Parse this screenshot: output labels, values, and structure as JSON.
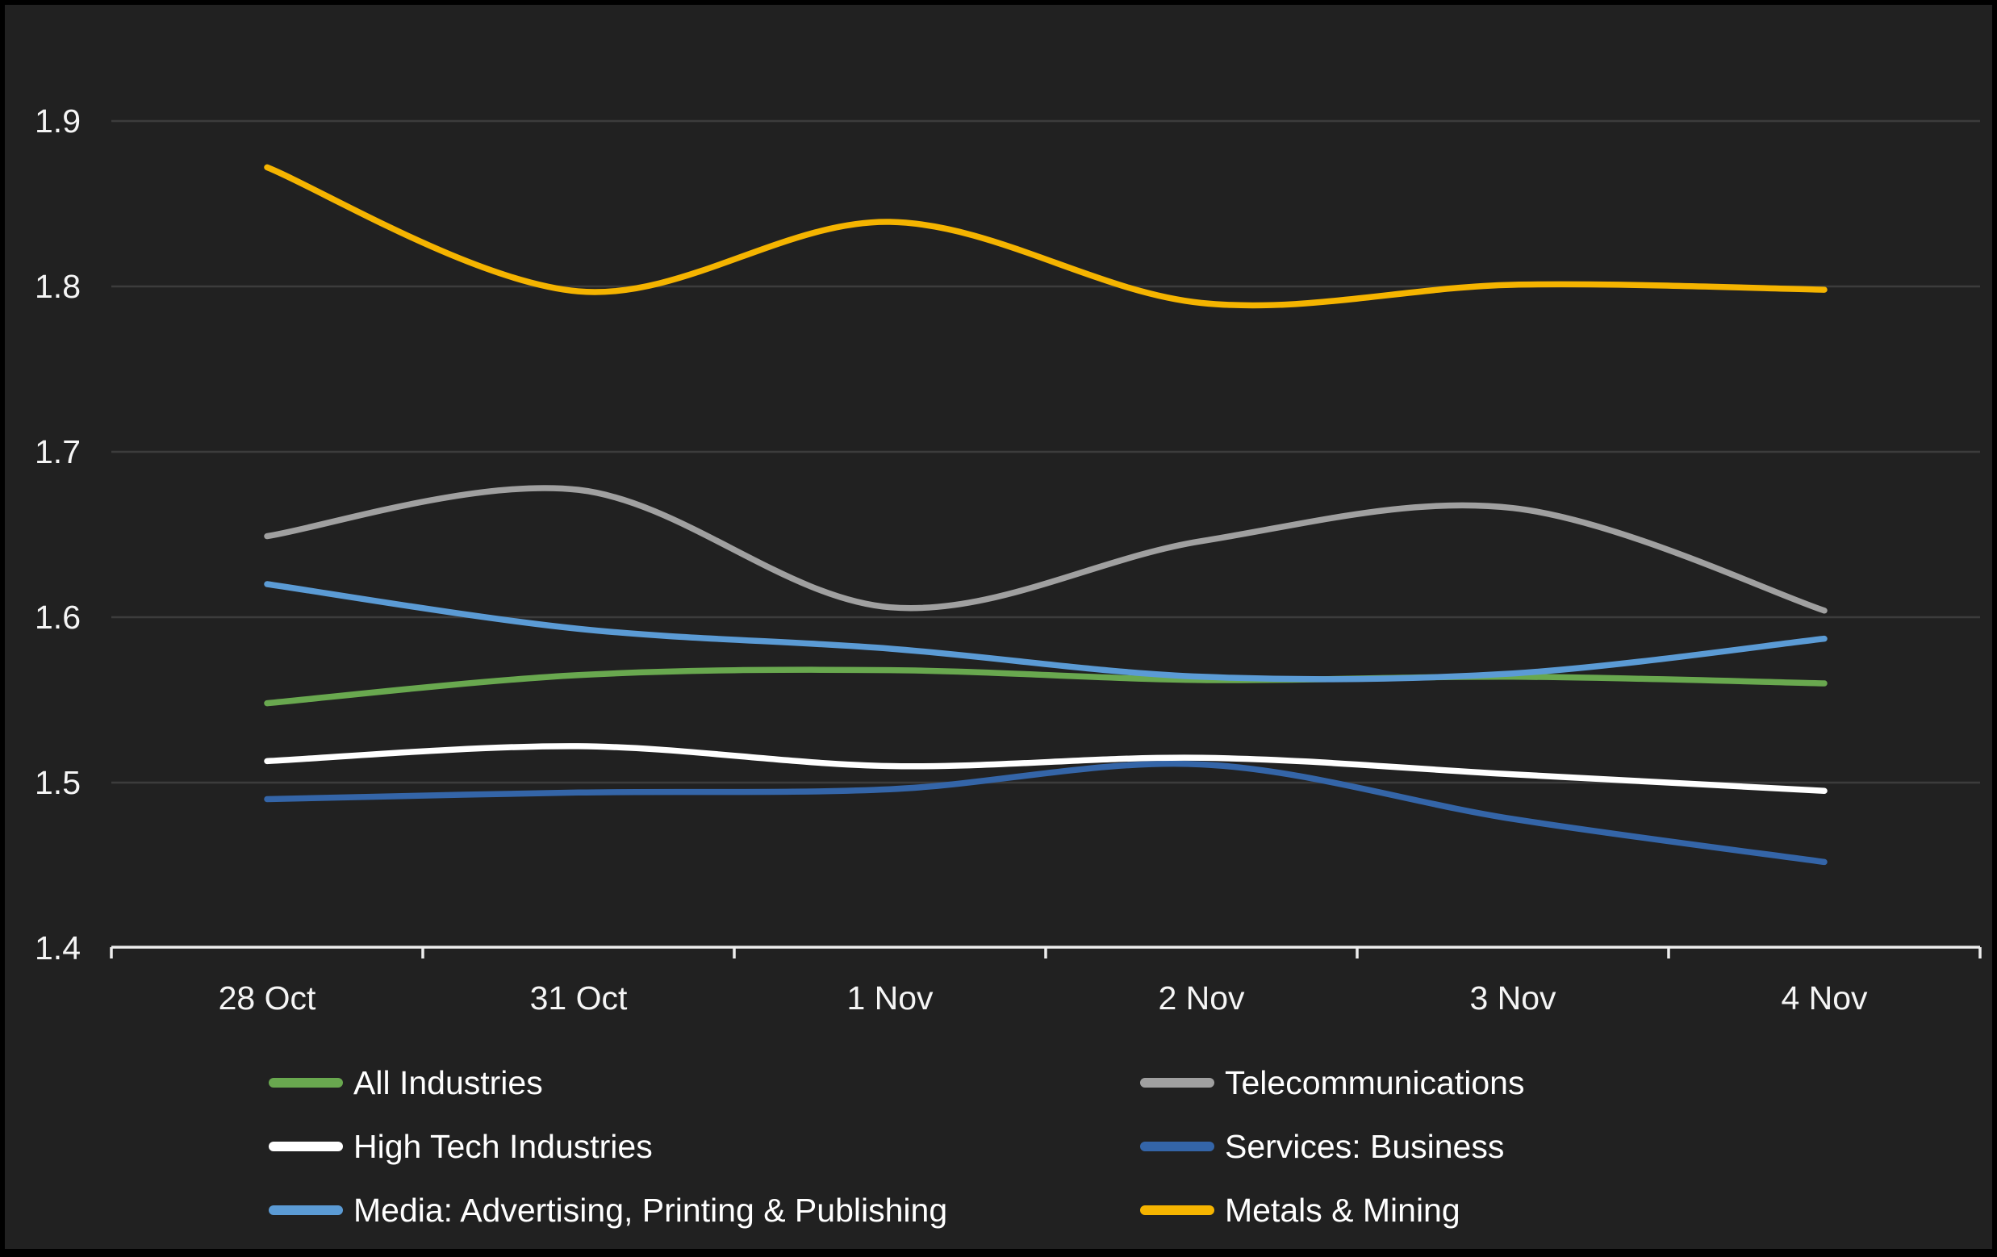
{
  "chart_data": {
    "type": "line",
    "categories": [
      "28 Oct",
      "31 Oct",
      "1 Nov",
      "2 Nov",
      "3 Nov",
      "4 Nov"
    ],
    "series": [
      {
        "name": "Telecommunications",
        "color": "#a0a0a0",
        "values": [
          1.649,
          1.677,
          1.606,
          1.646,
          1.666,
          1.604
        ]
      },
      {
        "name": "All Industries",
        "color": "#69a84f",
        "values": [
          1.548,
          1.565,
          1.568,
          1.562,
          1.564,
          1.56
        ]
      },
      {
        "name": "Services: Business",
        "color": "#3465a8",
        "values": [
          1.49,
          1.494,
          1.496,
          1.511,
          1.478,
          1.452
        ]
      },
      {
        "name": "High Tech Industries",
        "color": "#ffffff",
        "values": [
          1.513,
          1.522,
          1.51,
          1.515,
          1.505,
          1.495
        ]
      },
      {
        "name": "Media: Advertising, Printing & Publishing",
        "color": "#5b9bd5",
        "values": [
          1.62,
          1.593,
          1.581,
          1.564,
          1.566,
          1.587
        ]
      },
      {
        "name": "Metals & Mining",
        "color": "#f5b400",
        "values": [
          1.872,
          1.797,
          1.839,
          1.79,
          1.801,
          1.798
        ]
      }
    ],
    "y_ticks": [
      1.4,
      1.5,
      1.6,
      1.7,
      1.8,
      1.9
    ],
    "ylim": [
      1.4,
      1.95
    ],
    "title": "",
    "xlabel": "",
    "ylabel": "",
    "grid": true,
    "legend_position": "bottom",
    "legend_columns": [
      [
        "All Industries",
        "High Tech Industries",
        "Media: Advertising, Printing & Publishing"
      ],
      [
        "Telecommunications",
        "Services: Business",
        "Metals & Mining"
      ]
    ]
  },
  "styles": {
    "frame_color": "#000000",
    "background": "#212121",
    "grid_color": "#3c3c3c",
    "axis_color": "#ededed",
    "label_color": "#f5f5f5"
  }
}
